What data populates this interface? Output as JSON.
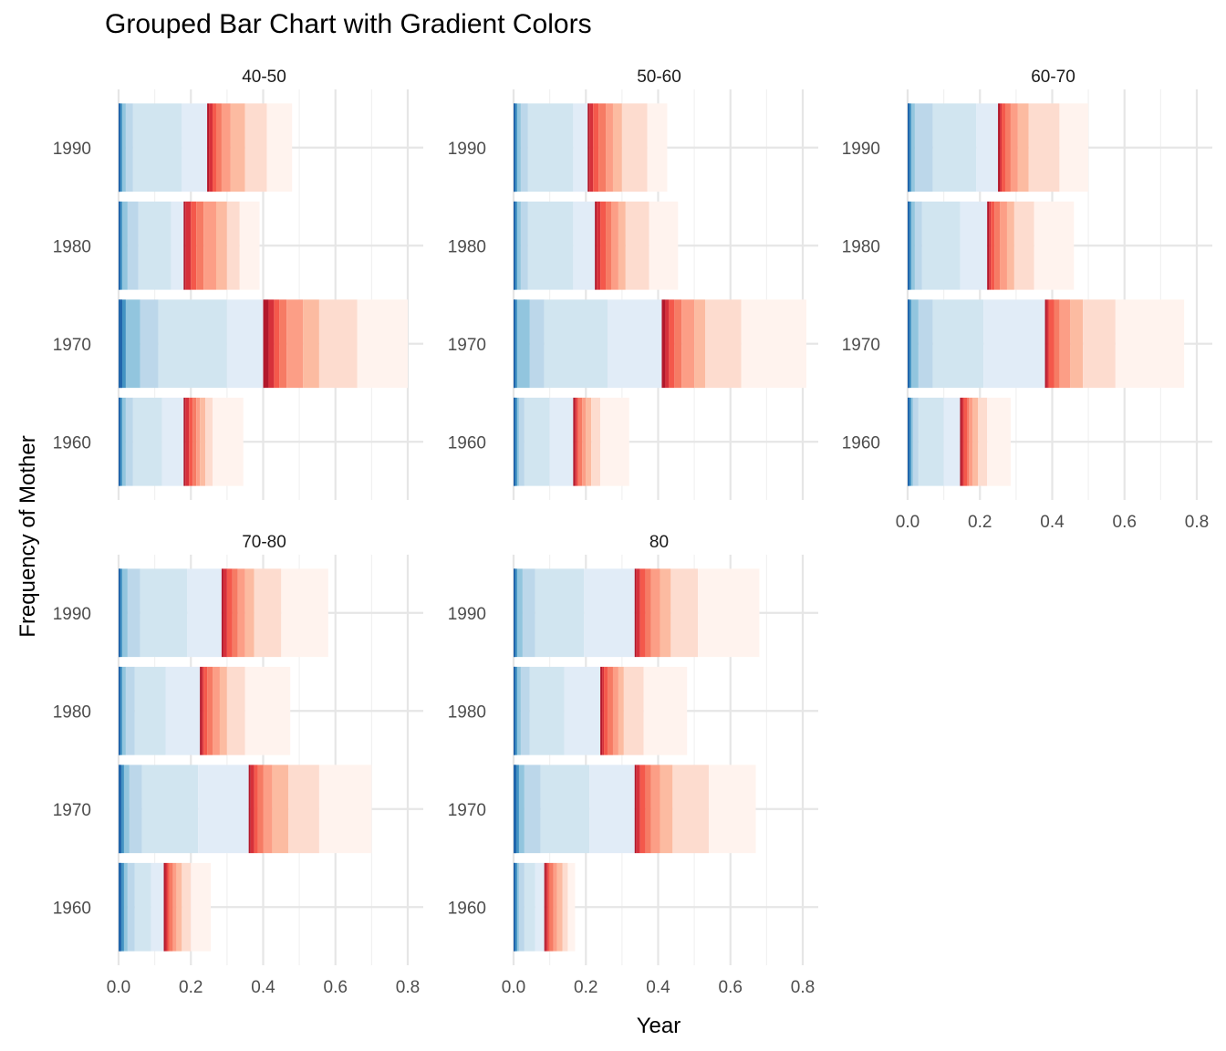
{
  "chart_data": {
    "type": "bar",
    "orientation": "horizontal",
    "stacked": true,
    "faceted": true,
    "title": "Grouped Bar Chart with Gradient Colors",
    "xlabel": "Year",
    "ylabel": "Frequency of Mother",
    "xlim": [
      0,
      0.8
    ],
    "x_ticks": [
      "0.0",
      "0.2",
      "0.4",
      "0.6",
      "0.8"
    ],
    "categories": [
      "1960",
      "1970",
      "1980",
      "1990"
    ],
    "grid": true,
    "legend": "none",
    "colors": {
      "blue_gradient": [
        "#2166ac",
        "#4393c3",
        "#92c5de",
        "#bcd7ea",
        "#d1e5f0",
        "#e1ecf7",
        "#f7fbff"
      ],
      "red_gradient": [
        "#b2182b",
        "#d6303a",
        "#f4584b",
        "#f67b64",
        "#fc9e86",
        "#fcbba1",
        "#fddccf",
        "#fff3ee"
      ]
    },
    "panels": [
      {
        "name": "40-50",
        "bars": [
          {
            "year": "1960",
            "blue": [
              0.01,
              0.02,
              0.04,
              0.12,
              0.18
            ],
            "red": [
              0.185,
              0.195,
              0.205,
              0.215,
              0.225,
              0.24,
              0.26,
              0.345
            ]
          },
          {
            "year": "1970",
            "blue": [
              0.02,
              0.06,
              0.11,
              0.3,
              0.4
            ],
            "red": [
              0.415,
              0.43,
              0.445,
              0.465,
              0.51,
              0.555,
              0.66,
              0.8
            ]
          },
          {
            "year": "1980",
            "blue": [
              0.01,
              0.025,
              0.055,
              0.145,
              0.18
            ],
            "red": [
              0.185,
              0.2,
              0.215,
              0.235,
              0.27,
              0.3,
              0.335,
              0.39
            ]
          },
          {
            "year": "1990",
            "blue": [
              0.01,
              0.02,
              0.04,
              0.175,
              0.245
            ],
            "red": [
              0.25,
              0.26,
              0.27,
              0.285,
              0.31,
              0.35,
              0.41,
              0.48
            ]
          }
        ]
      },
      {
        "name": "50-60",
        "bars": [
          {
            "year": "1960",
            "blue": [
              0.01,
              0.015,
              0.03,
              0.1,
              0.165
            ],
            "red": [
              0.17,
              0.175,
              0.18,
              0.19,
              0.2,
              0.215,
              0.24,
              0.32
            ]
          },
          {
            "year": "1970",
            "blue": [
              0.01,
              0.045,
              0.085,
              0.26,
              0.41
            ],
            "red": [
              0.42,
              0.43,
              0.445,
              0.465,
              0.5,
              0.53,
              0.63,
              0.81
            ]
          },
          {
            "year": "1980",
            "blue": [
              0.01,
              0.02,
              0.04,
              0.165,
              0.225
            ],
            "red": [
              0.23,
              0.24,
              0.255,
              0.27,
              0.29,
              0.31,
              0.375,
              0.455
            ]
          },
          {
            "year": "1990",
            "blue": [
              0.01,
              0.02,
              0.04,
              0.165,
              0.205
            ],
            "red": [
              0.21,
              0.22,
              0.235,
              0.255,
              0.275,
              0.3,
              0.37,
              0.425
            ]
          }
        ]
      },
      {
        "name": "60-70",
        "bars": [
          {
            "year": "1960",
            "blue": [
              0.01,
              0.015,
              0.03,
              0.1,
              0.145
            ],
            "red": [
              0.15,
              0.155,
              0.165,
              0.17,
              0.18,
              0.195,
              0.22,
              0.285
            ]
          },
          {
            "year": "1970",
            "blue": [
              0.01,
              0.03,
              0.07,
              0.21,
              0.38
            ],
            "red": [
              0.385,
              0.39,
              0.405,
              0.42,
              0.45,
              0.485,
              0.575,
              0.765
            ]
          },
          {
            "year": "1980",
            "blue": [
              0.01,
              0.02,
              0.04,
              0.145,
              0.22
            ],
            "red": [
              0.225,
              0.23,
              0.24,
              0.255,
              0.275,
              0.295,
              0.35,
              0.46
            ]
          },
          {
            "year": "1990",
            "blue": [
              0.01,
              0.02,
              0.07,
              0.19,
              0.25
            ],
            "red": [
              0.255,
              0.26,
              0.27,
              0.285,
              0.305,
              0.335,
              0.42,
              0.5
            ]
          }
        ]
      },
      {
        "name": "70-80",
        "bars": [
          {
            "year": "1960",
            "blue": [
              0.015,
              0.025,
              0.045,
              0.09,
              0.125
            ],
            "red": [
              0.13,
              0.135,
              0.14,
              0.15,
              0.16,
              0.175,
              0.2,
              0.255
            ]
          },
          {
            "year": "1970",
            "blue": [
              0.015,
              0.03,
              0.065,
              0.22,
              0.36
            ],
            "red": [
              0.365,
              0.375,
              0.385,
              0.4,
              0.425,
              0.47,
              0.555,
              0.7
            ]
          },
          {
            "year": "1980",
            "blue": [
              0.01,
              0.02,
              0.045,
              0.13,
              0.225
            ],
            "red": [
              0.23,
              0.235,
              0.245,
              0.26,
              0.28,
              0.3,
              0.35,
              0.475
            ]
          },
          {
            "year": "1990",
            "blue": [
              0.01,
              0.025,
              0.06,
              0.19,
              0.285
            ],
            "red": [
              0.29,
              0.3,
              0.315,
              0.33,
              0.35,
              0.375,
              0.45,
              0.58
            ]
          }
        ]
      },
      {
        "name": "80",
        "bars": [
          {
            "year": "1960",
            "blue": [
              0.01,
              0.015,
              0.03,
              0.06,
              0.085
            ],
            "red": [
              0.09,
              0.095,
              0.1,
              0.11,
              0.12,
              0.135,
              0.15,
              0.17
            ]
          },
          {
            "year": "1970",
            "blue": [
              0.015,
              0.03,
              0.075,
              0.21,
              0.335
            ],
            "red": [
              0.34,
              0.35,
              0.365,
              0.38,
              0.405,
              0.44,
              0.54,
              0.67
            ]
          },
          {
            "year": "1980",
            "blue": [
              0.01,
              0.02,
              0.045,
              0.14,
              0.24
            ],
            "red": [
              0.245,
              0.25,
              0.26,
              0.275,
              0.29,
              0.305,
              0.36,
              0.48
            ]
          },
          {
            "year": "1990",
            "blue": [
              0.01,
              0.025,
              0.06,
              0.195,
              0.335
            ],
            "red": [
              0.34,
              0.35,
              0.365,
              0.38,
              0.405,
              0.435,
              0.51,
              0.68
            ]
          }
        ]
      }
    ]
  }
}
